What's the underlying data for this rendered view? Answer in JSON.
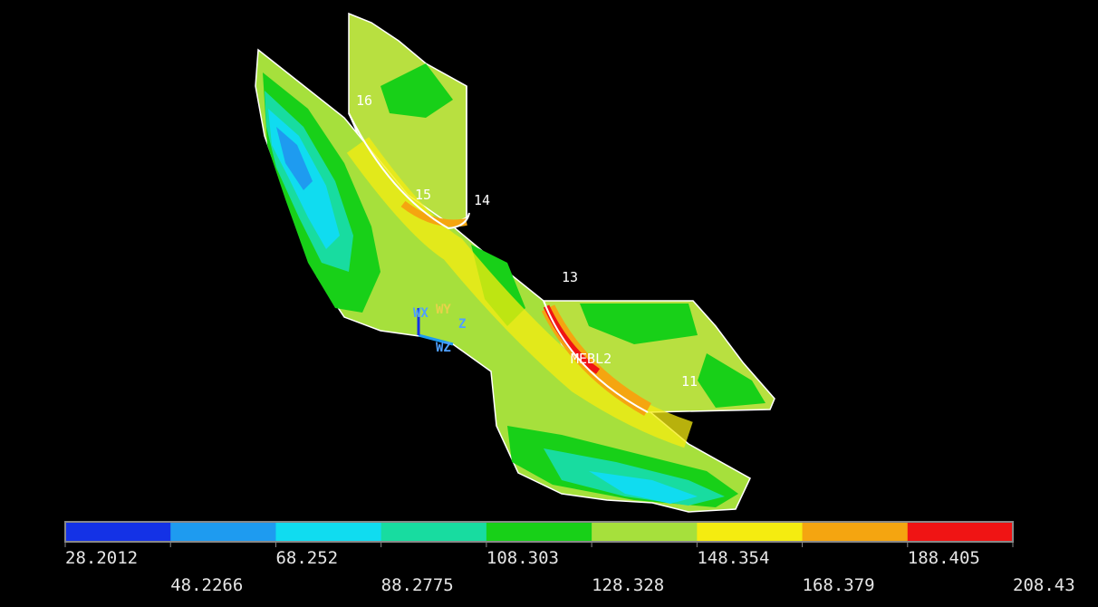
{
  "model": {
    "node_labels": [
      "16",
      "15",
      "14",
      "13",
      "MEBL2",
      "11"
    ],
    "axis_labels": [
      "WX",
      "WY",
      "WZ",
      "Z"
    ]
  },
  "legend": {
    "colors": [
      "#1432e6",
      "#1e9bf0",
      "#10dcf0",
      "#18dca0",
      "#18d018",
      "#a6e03c",
      "#f5ec10",
      "#f5a510",
      "#f01414"
    ],
    "labels": [
      "28.2012",
      "48.2266",
      "68.252",
      "88.2775",
      "108.303",
      "128.328",
      "148.354",
      "168.379",
      "188.405",
      "208.43"
    ]
  }
}
